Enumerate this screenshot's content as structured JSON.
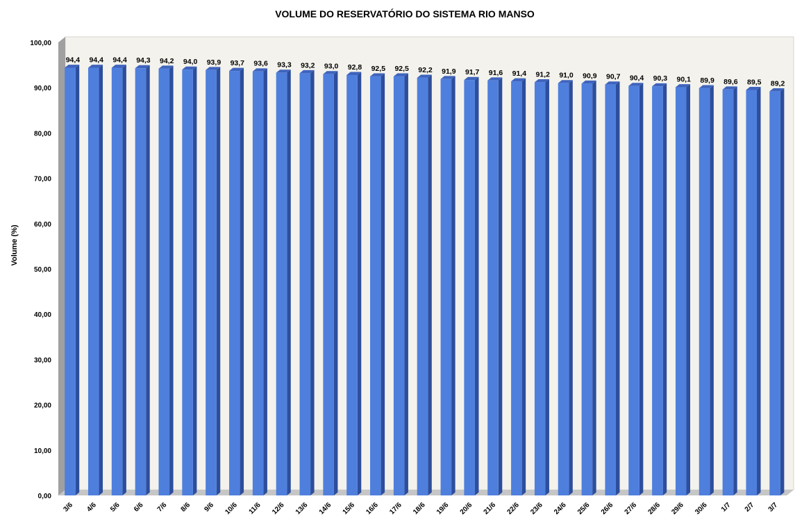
{
  "chart_data": {
    "type": "bar",
    "title": "VOLUME DO RESERVATÓRIO DO SISTEMA RIO MANSO",
    "xlabel": "",
    "ylabel": "Volume (%)",
    "ylim": [
      0,
      100
    ],
    "yticks": [
      "0,00",
      "10,00",
      "20,00",
      "30,00",
      "40,00",
      "50,00",
      "60,00",
      "70,00",
      "80,00",
      "90,00",
      "100,00"
    ],
    "categories": [
      "3/6",
      "4/6",
      "5/6",
      "6/6",
      "7/6",
      "8/6",
      "9/6",
      "10/6",
      "11/6",
      "12/6",
      "13/6",
      "14/6",
      "15/6",
      "16/6",
      "17/6",
      "18/6",
      "19/6",
      "20/6",
      "21/6",
      "22/6",
      "23/6",
      "24/6",
      "25/6",
      "26/6",
      "27/6",
      "28/6",
      "29/6",
      "30/6",
      "1/7",
      "2/7",
      "3/7"
    ],
    "values": [
      94.4,
      94.4,
      94.4,
      94.3,
      94.2,
      94.0,
      93.9,
      93.7,
      93.6,
      93.3,
      93.2,
      93.0,
      92.8,
      92.5,
      92.5,
      92.2,
      91.9,
      91.7,
      91.6,
      91.4,
      91.2,
      91.0,
      90.9,
      90.7,
      90.4,
      90.3,
      90.1,
      89.9,
      89.6,
      89.5,
      89.2
    ],
    "data_labels": [
      "94,4",
      "94,4",
      "94,4",
      "94,3",
      "94,2",
      "94,0",
      "93,9",
      "93,7",
      "93,6",
      "93,3",
      "93,2",
      "93,0",
      "92,8",
      "92,5",
      "92,5",
      "92,2",
      "91,9",
      "91,7",
      "91,6",
      "91,4",
      "91,2",
      "91,0",
      "90,9",
      "90,7",
      "90,4",
      "90,3",
      "90,1",
      "89,9",
      "89,6",
      "89,5",
      "89,2"
    ],
    "grid": false,
    "legend": "none",
    "colors": {
      "bar_front": "#4f7fdd",
      "bar_side": "#2d4e9c",
      "bar_top": "#3f64bd",
      "wall": "#f3f2ec",
      "side_wall": "#a0a0a0",
      "floor": "#c6c6c6"
    }
  }
}
